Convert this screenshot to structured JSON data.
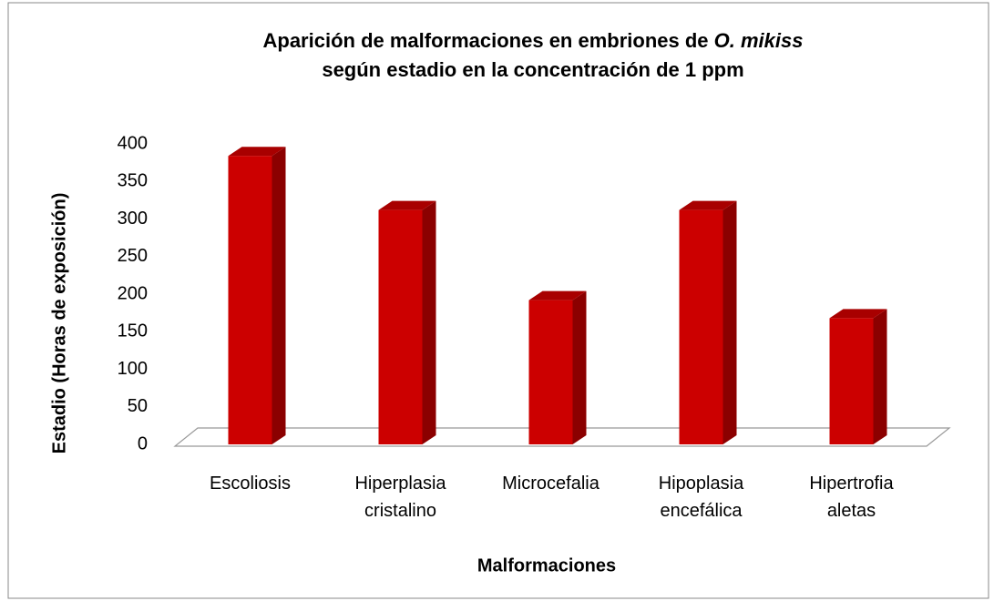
{
  "chart_data": {
    "type": "bar3d",
    "title": [
      "Aparición de malformaciones en embriones de",
      "O. mikiss",
      "según estadio en la concentración de 1 ppm"
    ],
    "xlabel": "Malformaciones",
    "ylabel": "Estadio (Horas de exposición)",
    "categories": [
      "Escoliosis",
      "Hiperplasia cristalino",
      "Microcefalia",
      "Hipoplasia encefálica",
      "Hipertrofia aletas"
    ],
    "values": [
      384,
      312,
      192,
      312,
      168
    ],
    "color": "#cc0000",
    "ylim": [
      0,
      400
    ],
    "yticks": [
      0,
      50,
      100,
      150,
      200,
      250,
      300,
      350,
      400
    ]
  }
}
